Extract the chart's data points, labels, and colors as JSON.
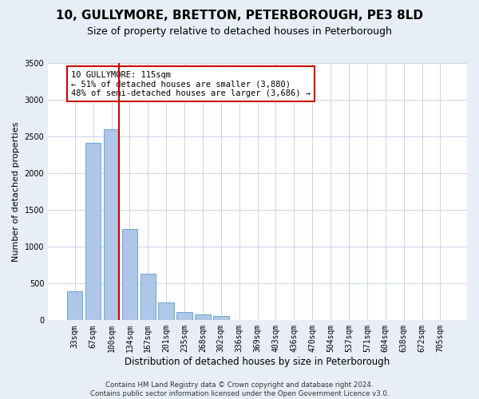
{
  "title": "10, GULLYMORE, BRETTON, PETERBOROUGH, PE3 8LD",
  "subtitle": "Size of property relative to detached houses in Peterborough",
  "xlabel": "Distribution of detached houses by size in Peterborough",
  "ylabel": "Number of detached properties",
  "categories": [
    "33sqm",
    "67sqm",
    "100sqm",
    "134sqm",
    "167sqm",
    "201sqm",
    "235sqm",
    "268sqm",
    "302sqm",
    "336sqm",
    "369sqm",
    "403sqm",
    "436sqm",
    "470sqm",
    "504sqm",
    "537sqm",
    "571sqm",
    "604sqm",
    "638sqm",
    "672sqm",
    "705sqm"
  ],
  "values": [
    390,
    2410,
    2600,
    1240,
    630,
    240,
    110,
    80,
    55,
    0,
    0,
    0,
    0,
    0,
    0,
    0,
    0,
    0,
    0,
    0,
    0
  ],
  "bar_color": "#aec6e8",
  "bar_edge_color": "#5b9bd5",
  "red_line_index": 2,
  "annotation_text": "10 GULLYMORE: 115sqm\n← 51% of detached houses are smaller (3,880)\n48% of semi-detached houses are larger (3,686) →",
  "annotation_box_color": "#ffffff",
  "annotation_box_edge": "#cc0000",
  "ylim": [
    0,
    3500
  ],
  "yticks": [
    0,
    500,
    1000,
    1500,
    2000,
    2500,
    3000,
    3500
  ],
  "footer": "Contains HM Land Registry data © Crown copyright and database right 2024.\nContains public sector information licensed under the Open Government Licence v3.0.",
  "background_color": "#e8eef7",
  "plot_background": "#ffffff",
  "grid_color": "#c8d4e8",
  "title_fontsize": 11,
  "subtitle_fontsize": 9,
  "xlabel_fontsize": 8.5,
  "tick_fontsize": 7,
  "ylabel_fontsize": 8
}
